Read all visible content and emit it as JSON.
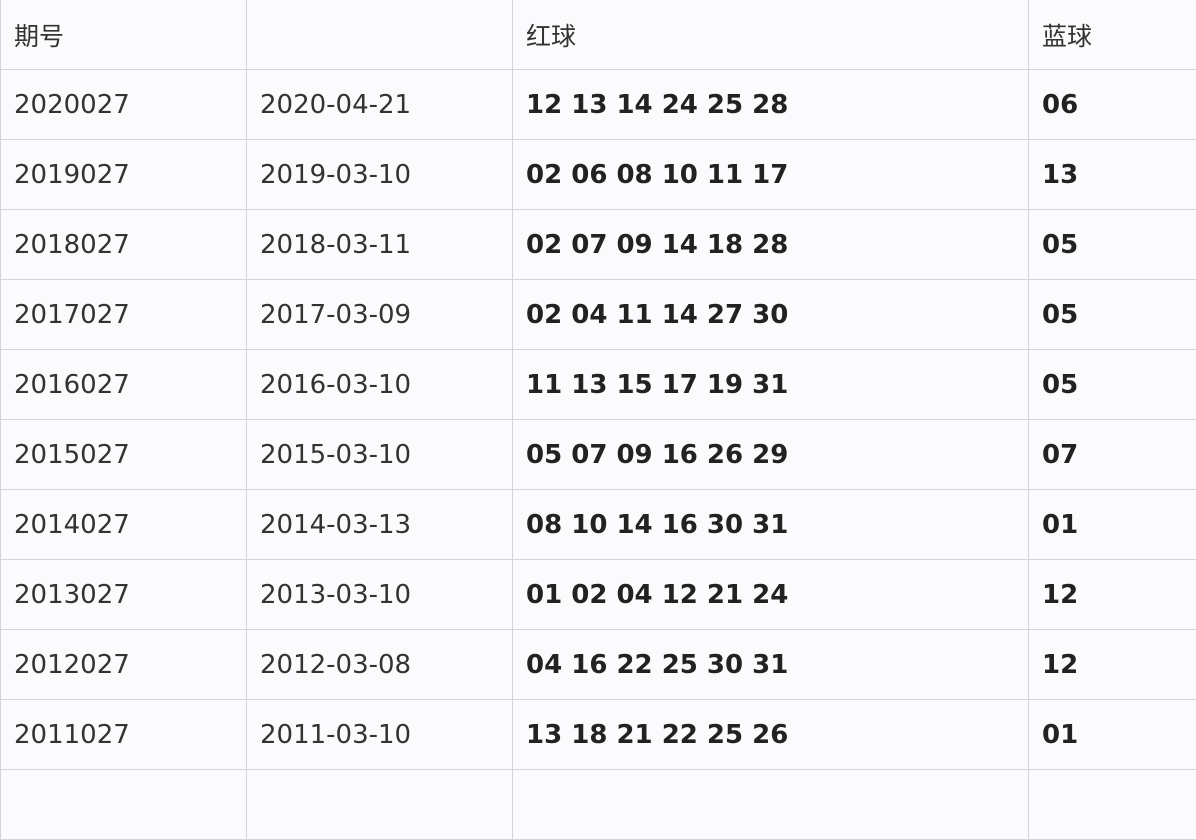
{
  "table": {
    "headers": [
      "期号",
      "",
      "红球",
      "蓝球"
    ],
    "rows": [
      {
        "issue": "2020027",
        "date": "2020-04-21",
        "red": "12 13 14 24 25 28",
        "blue": "06"
      },
      {
        "issue": "2019027",
        "date": "2019-03-10",
        "red": "02 06 08 10 11 17",
        "blue": "13"
      },
      {
        "issue": "2018027",
        "date": "2018-03-11",
        "red": "02 07 09 14 18 28",
        "blue": "05"
      },
      {
        "issue": "2017027",
        "date": "2017-03-09",
        "red": "02 04 11 14 27 30",
        "blue": "05"
      },
      {
        "issue": "2016027",
        "date": "2016-03-10",
        "red": "11 13 15 17 19 31",
        "blue": "05"
      },
      {
        "issue": "2015027",
        "date": "2015-03-10",
        "red": "05 07 09 16 26 29",
        "blue": "07"
      },
      {
        "issue": "2014027",
        "date": "2014-03-13",
        "red": "08 10 14 16 30 31",
        "blue": "01"
      },
      {
        "issue": "2013027",
        "date": "2013-03-10",
        "red": "01 02 04 12 21 24",
        "blue": "12"
      },
      {
        "issue": "2012027",
        "date": "2012-03-08",
        "red": "04 16 22 25 30 31",
        "blue": "12"
      },
      {
        "issue": "2011027",
        "date": "2011-03-10",
        "red": "13 18 21 22 25 26",
        "blue": "01"
      },
      {
        "issue": "",
        "date": "",
        "red": "",
        "blue": ""
      }
    ]
  }
}
